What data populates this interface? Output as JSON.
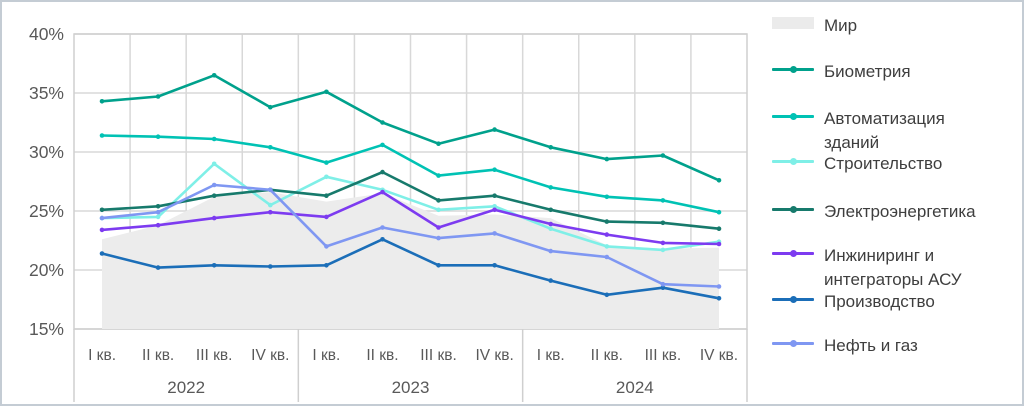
{
  "chart_data": {
    "type": "line",
    "title": "",
    "x_categories": [
      "I кв.",
      "II кв.",
      "III кв.",
      "IV кв.",
      "I кв.",
      "II кв.",
      "III кв.",
      "IV кв.",
      "I кв.",
      "II кв.",
      "III кв.",
      "IV кв."
    ],
    "year_groups": [
      {
        "label": "2022",
        "quarters": 4
      },
      {
        "label": "2023",
        "quarters": 4
      },
      {
        "label": "2024",
        "quarters": 4
      }
    ],
    "y_ticks": [
      {
        "label": "40%",
        "value": 40
      },
      {
        "label": "35%",
        "value": 35
      },
      {
        "label": "30%",
        "value": 30
      },
      {
        "label": "25%",
        "value": 25
      },
      {
        "label": "20%",
        "value": 20
      },
      {
        "label": "15%",
        "value": 15
      }
    ],
    "ylim": [
      15,
      40
    ],
    "grid": true,
    "legend_position": "right",
    "series": [
      {
        "key": "mir",
        "name": "Мир",
        "kind": "area",
        "color": "#ececec",
        "legend_color": "#ebebeb",
        "values": [
          22.6,
          23.8,
          26.2,
          26.6,
          25.8,
          26.5,
          24.6,
          24.7,
          24.4,
          22.1,
          21.8,
          21.9
        ]
      },
      {
        "key": "biometry",
        "name": "Биометрия",
        "kind": "line",
        "color": "#00a18c",
        "values": [
          34.3,
          34.7,
          36.5,
          33.8,
          35.1,
          32.5,
          30.7,
          31.9,
          30.4,
          29.4,
          29.7,
          27.6
        ]
      },
      {
        "key": "building-automation",
        "name": "Автоматизация зданий",
        "kind": "line",
        "color": "#00c2b4",
        "values": [
          31.4,
          31.3,
          31.1,
          30.4,
          29.1,
          30.6,
          28.0,
          28.5,
          27.0,
          26.2,
          25.9,
          24.9
        ]
      },
      {
        "key": "construction",
        "name": "Строительство",
        "kind": "line",
        "color": "#7fefe7",
        "values": [
          24.4,
          24.5,
          29.0,
          25.5,
          27.9,
          26.8,
          25.1,
          25.4,
          23.5,
          22.0,
          21.7,
          22.4
        ]
      },
      {
        "key": "power-industry",
        "name": "Электроэнергетика",
        "kind": "line",
        "color": "#177a6c",
        "values": [
          25.1,
          25.4,
          26.3,
          26.8,
          26.3,
          28.3,
          25.9,
          26.3,
          25.1,
          24.1,
          24.0,
          23.5
        ]
      },
      {
        "key": "engineering-asu",
        "name": "Инжиниринг и интеграторы АСУ",
        "kind": "line",
        "color": "#7d3bf0",
        "values": [
          23.4,
          23.8,
          24.4,
          24.9,
          24.5,
          26.6,
          23.6,
          25.1,
          23.9,
          23.0,
          22.3,
          22.2
        ]
      },
      {
        "key": "manufacturing",
        "name": "Производство",
        "kind": "line",
        "color": "#1b6eb8",
        "values": [
          21.4,
          20.2,
          20.4,
          20.3,
          20.4,
          22.6,
          20.4,
          20.4,
          19.1,
          17.9,
          18.5,
          17.6
        ]
      },
      {
        "key": "oil-gas",
        "name": "Нефть и газ",
        "kind": "line",
        "color": "#7f97f2",
        "values": [
          24.4,
          24.9,
          27.2,
          26.8,
          22.0,
          23.6,
          22.7,
          23.1,
          21.6,
          21.1,
          18.8,
          18.6
        ]
      }
    ]
  },
  "legend": {
    "items": [
      {
        "series_key": "mir",
        "lines": [
          "Мир"
        ]
      },
      {
        "series_key": "biometry",
        "lines": [
          "Биометрия"
        ]
      },
      {
        "series_key": "building-automation",
        "lines": [
          "Автоматизация",
          "зданий"
        ]
      },
      {
        "series_key": "construction",
        "lines": [
          "Строительство"
        ]
      },
      {
        "series_key": "power-industry",
        "lines": [
          "Электроэнергетика"
        ]
      },
      {
        "series_key": "engineering-asu",
        "lines": [
          "Инжиниринг и",
          "интеграторы АСУ"
        ]
      },
      {
        "series_key": "manufacturing",
        "lines": [
          "Производство"
        ]
      },
      {
        "series_key": "oil-gas",
        "lines": [
          "Нефть и газ"
        ]
      }
    ]
  },
  "colors": {
    "grid": "#d8d8d8",
    "plot_frame": "#cfcfcf",
    "axis_text": "#595959",
    "legend_text": "#3e3e3e",
    "background": "#ffffff",
    "outer_border": "#c4ccd4"
  }
}
